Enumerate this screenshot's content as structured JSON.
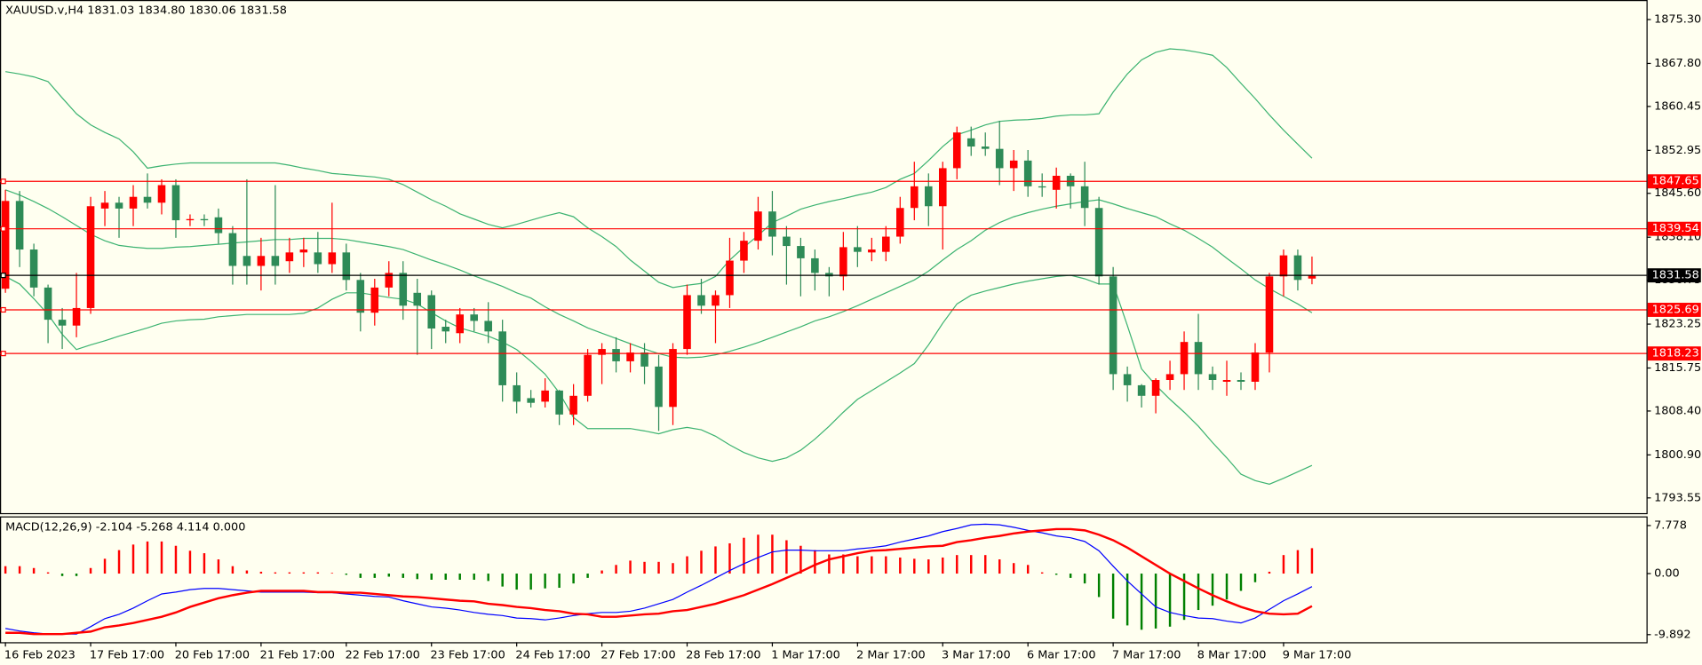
{
  "chart_data": [
    {
      "type": "candlestick",
      "title": "XAUUSD.v,H4  1831.03 1834.80 1830.06 1831.58",
      "categories": [
        "16 Feb 2023",
        null,
        null,
        null,
        null,
        null,
        "17 Feb 17:00",
        null,
        null,
        null,
        null,
        null,
        "20 Feb 17:00",
        null,
        null,
        null,
        null,
        null,
        "21 Feb 17:00",
        null,
        null,
        null,
        null,
        null,
        "22 Feb 17:00",
        null,
        null,
        null,
        null,
        null,
        "23 Feb 17:00",
        null,
        null,
        null,
        null,
        null,
        "24 Feb 17:00",
        null,
        null,
        null,
        null,
        null,
        "27 Feb 17:00",
        null,
        null,
        null,
        null,
        null,
        "28 Feb 17:00",
        null,
        null,
        null,
        null,
        null,
        "1 Mar 17:00",
        null,
        null,
        null,
        null,
        null,
        "2 Mar 17:00",
        null,
        null,
        null,
        null,
        null,
        "3 Mar 17:00",
        null,
        null,
        null,
        null,
        null,
        "6 Mar 17:00",
        null,
        null,
        null,
        null,
        null,
        "7 Mar 17:00",
        null,
        null,
        null,
        null,
        null,
        "8 Mar 17:00",
        null,
        null,
        null,
        null,
        null,
        "9 Mar 17:00",
        null,
        null
      ],
      "open": [
        1829.3,
        1844.3,
        1836,
        1829.5,
        1824,
        1823,
        1826,
        1843,
        1844,
        1843,
        1845,
        1844,
        1847,
        1841,
        1841.2,
        1841.5,
        1838.8,
        1834.9,
        1833.2,
        1834.9,
        1834,
        1835.5,
        1835.5,
        1833.5,
        1835.5,
        1830.8,
        1825.2,
        1829.5,
        1832,
        1828.6,
        1828.2,
        1822.8,
        1821.7,
        1824.9,
        1823.8,
        1822,
        1812.8,
        1810.6,
        1810,
        1811.9,
        1807.8,
        1811,
        1818,
        1819,
        1816.9,
        1818.4,
        1816,
        1809.1,
        1819,
        1828.2,
        1826.4,
        1828.2,
        1834.1,
        1837.5,
        1842.5,
        1838.2,
        1836.6,
        1834.5,
        1832,
        1831.4,
        1836.4,
        1835.5,
        1835.6,
        1838.2,
        1843.1,
        1846.8,
        1843.4,
        1849.9,
        1855,
        1853.6,
        1853.2,
        1849.9,
        1851.2,
        1846.8,
        1846.2,
        1848.6,
        1846.8,
        1843.1,
        1831.4,
        1814.7,
        1812.8,
        1811,
        1813.7,
        1814.7,
        1820.2,
        1814.7,
        1813.4,
        1813.7,
        1813.4,
        1818.4,
        1831.4,
        1835,
        1831.03
      ],
      "high": [
        1846.2,
        1846,
        1837,
        1830,
        1826,
        1832,
        1845,
        1846,
        1845,
        1847,
        1849,
        1848,
        1848,
        1842,
        1842,
        1843,
        1840,
        1848,
        1838,
        1847,
        1838,
        1838,
        1839,
        1844,
        1837,
        1832,
        1831,
        1834,
        1834,
        1831,
        1829,
        1824,
        1826,
        1826,
        1827,
        1824,
        1815,
        1812,
        1814,
        1812,
        1813,
        1819,
        1820,
        1821,
        1820,
        1820,
        1818,
        1820,
        1830,
        1831,
        1829,
        1838,
        1839,
        1845,
        1846,
        1840,
        1838,
        1836,
        1833,
        1839,
        1840,
        1838,
        1840,
        1845,
        1851,
        1849,
        1851,
        1857,
        1857,
        1856,
        1858,
        1853,
        1853,
        1849,
        1850,
        1849,
        1851,
        1845,
        1833,
        1816,
        1813,
        1814,
        1817,
        1822,
        1825,
        1816,
        1817,
        1815,
        1820,
        1832,
        1836,
        1836,
        1834.8
      ],
      "low": [
        1828.6,
        1833,
        1828,
        1820,
        1819,
        1821,
        1825,
        1840,
        1838,
        1840,
        1843,
        1842,
        1838,
        1840,
        1840,
        1837,
        1830,
        1830,
        1829,
        1830,
        1832,
        1833,
        1832,
        1832,
        1829,
        1822,
        1823,
        1828,
        1824,
        1818,
        1819,
        1820,
        1820,
        1822,
        1820,
        1810,
        1808,
        1809,
        1809,
        1806,
        1806,
        1810,
        1813,
        1815,
        1815,
        1813,
        1805,
        1806,
        1818,
        1825,
        1820,
        1826,
        1832,
        1836,
        1835,
        1830,
        1828,
        1829,
        1828,
        1829,
        1833,
        1834,
        1834,
        1837,
        1841,
        1840,
        1836,
        1848,
        1852,
        1852,
        1847,
        1846,
        1845,
        1845,
        1843,
        1843,
        1840,
        1830,
        1812,
        1810,
        1809,
        1808,
        1812,
        1812,
        1812,
        1812,
        1811,
        1812,
        1812,
        1815,
        1828,
        1829,
        1830.06
      ],
      "close": [
        1844.3,
        1836,
        1829.5,
        1824,
        1823,
        1826,
        1843.4,
        1844,
        1843,
        1845,
        1844,
        1847,
        1841,
        1841.2,
        1841,
        1838.8,
        1833.2,
        1833.2,
        1834.9,
        1833.2,
        1835.5,
        1836,
        1833.5,
        1835.5,
        1830.8,
        1825.2,
        1829.5,
        1832,
        1826.4,
        1826.4,
        1822.5,
        1822,
        1824.9,
        1823.8,
        1822,
        1812.8,
        1810,
        1809.8,
        1811.9,
        1807.8,
        1811,
        1818,
        1819,
        1816.9,
        1818.4,
        1816,
        1809.1,
        1819,
        1828.2,
        1826.4,
        1828.2,
        1834.1,
        1837.5,
        1842.5,
        1838.2,
        1836.6,
        1834.5,
        1832,
        1831.4,
        1836.4,
        1835.6,
        1836,
        1838.2,
        1843.1,
        1846.8,
        1843.4,
        1849.9,
        1856,
        1853.6,
        1853.2,
        1849.9,
        1851.2,
        1846.8,
        1846.6,
        1848.6,
        1846.8,
        1843.1,
        1831.4,
        1814.7,
        1812.8,
        1811,
        1813.7,
        1814.7,
        1820.2,
        1814.7,
        1813.7,
        1813.7,
        1813.4,
        1818.4,
        1831.4,
        1835,
        1830.8,
        1831.58
      ],
      "up_color": "#ff0000",
      "down_color": "#2e8b57",
      "bands": {
        "color": "#3cb371",
        "upper": [
          1866.4,
          1866.0,
          1865.5,
          1864.7,
          1861.9,
          1859.2,
          1857.3,
          1856.0,
          1854.9,
          1852.7,
          1849.9,
          1850.3,
          1850.6,
          1850.8,
          1850.8,
          1850.8,
          1850.8,
          1850.8,
          1850.8,
          1850.8,
          1850.4,
          1849.9,
          1849.5,
          1849.0,
          1848.8,
          1848.6,
          1848.4,
          1848.0,
          1847.1,
          1845.8,
          1844.5,
          1843.4,
          1842.1,
          1841.2,
          1840.3,
          1839.7,
          1840.3,
          1841.0,
          1841.7,
          1842.3,
          1841.6,
          1839.7,
          1838.2,
          1836.5,
          1834.2,
          1832.3,
          1830.4,
          1829.5,
          1829.9,
          1830.2,
          1831.4,
          1834.2,
          1836.4,
          1838.4,
          1840.6,
          1841.7,
          1842.9,
          1843.6,
          1844.2,
          1844.7,
          1845.3,
          1845.8,
          1846.6,
          1848.0,
          1849.0,
          1851.2,
          1853.6,
          1855.6,
          1856.4,
          1857.3,
          1857.9,
          1858.1,
          1858.2,
          1858.4,
          1858.8,
          1859.0,
          1859.0,
          1859.2,
          1862.9,
          1866.0,
          1868.4,
          1869.7,
          1870.3,
          1870.1,
          1869.7,
          1869.2,
          1867.1,
          1864.4,
          1861.8,
          1859.0,
          1856.4,
          1854.0,
          1851.6
        ],
        "middle": [
          1846.2,
          1845.3,
          1844.2,
          1843.0,
          1841.6,
          1840.1,
          1838.6,
          1837.5,
          1836.7,
          1836.4,
          1836.2,
          1836.2,
          1836.4,
          1836.5,
          1836.7,
          1836.9,
          1837.1,
          1837.3,
          1837.5,
          1837.7,
          1837.7,
          1837.9,
          1837.9,
          1837.9,
          1837.7,
          1837.3,
          1836.9,
          1836.5,
          1836.0,
          1835.1,
          1834.2,
          1833.4,
          1832.5,
          1831.5,
          1830.6,
          1829.7,
          1828.6,
          1827.7,
          1826.2,
          1824.9,
          1823.8,
          1822.6,
          1821.7,
          1820.8,
          1819.9,
          1819.0,
          1818.2,
          1817.6,
          1817.5,
          1817.6,
          1818.0,
          1818.6,
          1819.3,
          1820.1,
          1821.0,
          1821.9,
          1822.8,
          1823.8,
          1824.5,
          1825.4,
          1826.4,
          1827.5,
          1828.6,
          1829.7,
          1830.8,
          1832.3,
          1834.2,
          1836.0,
          1837.5,
          1839.3,
          1840.6,
          1841.6,
          1842.3,
          1842.9,
          1843.4,
          1843.8,
          1844.2,
          1844.5,
          1843.8,
          1843.0,
          1842.3,
          1841.6,
          1840.4,
          1839.3,
          1837.9,
          1836.4,
          1834.5,
          1832.7,
          1830.8,
          1829.3,
          1828.0,
          1826.7,
          1825.2
        ],
        "lower": [
          1831.4,
          1830.1,
          1827.6,
          1824.9,
          1821.5,
          1818.9,
          1819.7,
          1820.4,
          1821.2,
          1821.9,
          1822.6,
          1823.4,
          1823.8,
          1824.0,
          1824.1,
          1824.5,
          1824.7,
          1824.9,
          1824.9,
          1824.9,
          1824.9,
          1825.1,
          1826.0,
          1827.5,
          1828.6,
          1828.6,
          1828.2,
          1827.8,
          1827.5,
          1826.7,
          1825.2,
          1823.8,
          1822.6,
          1821.9,
          1821.2,
          1820.2,
          1818.9,
          1816.9,
          1814.7,
          1811.5,
          1807.3,
          1805.4,
          1805.4,
          1805.4,
          1805.4,
          1805.0,
          1804.5,
          1805.2,
          1805.6,
          1805.2,
          1804.1,
          1802.6,
          1801.3,
          1800.4,
          1799.8,
          1800.4,
          1801.7,
          1803.6,
          1805.8,
          1808.2,
          1810.4,
          1811.9,
          1813.4,
          1814.9,
          1816.5,
          1819.7,
          1823.4,
          1826.7,
          1828.2,
          1828.9,
          1829.5,
          1830.1,
          1830.6,
          1831.0,
          1831.4,
          1831.6,
          1831.0,
          1830.1,
          1830.1,
          1823.0,
          1815.6,
          1812.8,
          1810.4,
          1808.2,
          1805.8,
          1803.0,
          1800.4,
          1797.6,
          1796.5,
          1795.9,
          1796.9,
          1798.0,
          1799.1
        ]
      },
      "levels": [
        {
          "value": 1847.65,
          "color": "#ff0000"
        },
        {
          "value": 1839.54,
          "color": "#ff0000"
        },
        {
          "value": 1831.58,
          "color": "#000000"
        },
        {
          "value": 1825.69,
          "color": "#ff0000"
        },
        {
          "value": 1818.23,
          "color": "#ff0000"
        }
      ],
      "ylim": [
        1790.95,
        1878.64
      ],
      "yticks": [
        {
          "value": 1875.3,
          "label": "1875.30"
        },
        {
          "value": 1867.8,
          "label": "1867.80"
        },
        1860.45,
        1852.95,
        {
          "value": 1845.6,
          "label": "1845.60"
        },
        {
          "value": 1838.1,
          "label": "1838.10"
        },
        1830.75,
        1823.25,
        1815.75,
        {
          "value": 1808.4,
          "label": "1808.40"
        },
        {
          "value": 1800.9,
          "label": "1800.90"
        },
        1793.55
      ]
    },
    {
      "type": "macd",
      "title": "MACD(12,26,9) -2.104 -5.268 4.114 0.000",
      "histogram": [
        1.2,
        1.2,
        0.9,
        0.2,
        -0.4,
        -0.4,
        0.9,
        2.4,
        3.8,
        4.7,
        5.2,
        5.2,
        4.5,
        3.7,
        3.3,
        2.3,
        1.2,
        0.5,
        0.3,
        0.2,
        0.2,
        0.2,
        0.2,
        0.1,
        -0.2,
        -0.7,
        -0.7,
        -0.5,
        -0.7,
        -0.9,
        -1.0,
        -1.0,
        -1.0,
        -1.0,
        -1.2,
        -2.1,
        -2.6,
        -2.6,
        -2.4,
        -2.3,
        -1.6,
        -0.7,
        0.5,
        1.4,
        2.1,
        1.9,
        1.9,
        1.7,
        2.8,
        3.7,
        4.4,
        4.9,
        5.8,
        6.3,
        6.3,
        5.4,
        4.5,
        3.8,
        3.1,
        3.1,
        2.8,
        2.8,
        2.8,
        2.6,
        2.4,
        2.3,
        2.6,
        3.0,
        3.0,
        3.0,
        2.3,
        1.7,
        1.4,
        0.2,
        -0.2,
        -0.7,
        -1.6,
        -3.8,
        -7.3,
        -8.4,
        -9.1,
        -8.9,
        -8.6,
        -7.5,
        -5.9,
        -5.2,
        -4.2,
        -2.8,
        -1.4,
        0.3,
        3.0,
        3.8,
        4.114
      ],
      "up_color": "#ff0000",
      "down_color": "#008000",
      "macd": {
        "color": "#0000ff",
        "values": [
          -8.9,
          -9.3,
          -9.6,
          -9.8,
          -9.8,
          -9.8,
          -8.6,
          -7.3,
          -6.6,
          -5.6,
          -4.4,
          -3.3,
          -3.0,
          -2.6,
          -2.4,
          -2.4,
          -2.6,
          -2.8,
          -3.0,
          -3.0,
          -3.0,
          -3.0,
          -3.1,
          -3.1,
          -3.3,
          -3.5,
          -3.7,
          -3.8,
          -4.4,
          -4.9,
          -5.4,
          -5.6,
          -5.9,
          -6.3,
          -6.6,
          -6.8,
          -7.2,
          -7.3,
          -7.5,
          -7.2,
          -6.8,
          -6.5,
          -6.3,
          -6.3,
          -6.1,
          -5.6,
          -4.9,
          -4.2,
          -3.0,
          -1.9,
          -0.7,
          0.5,
          1.6,
          2.6,
          3.5,
          3.8,
          3.8,
          3.7,
          3.7,
          3.7,
          4.0,
          4.2,
          4.5,
          5.1,
          5.6,
          6.1,
          6.8,
          7.3,
          7.9,
          8.0,
          7.9,
          7.5,
          7.0,
          6.6,
          6.1,
          5.8,
          5.2,
          3.7,
          1.2,
          -1.2,
          -3.3,
          -5.4,
          -6.3,
          -6.8,
          -7.2,
          -7.3,
          -7.7,
          -8.0,
          -7.2,
          -5.8,
          -4.4,
          -3.3,
          -2.104
        ]
      },
      "signal": {
        "color": "#ff0000",
        "values": [
          -9.6,
          -9.6,
          -9.8,
          -9.8,
          -9.8,
          -9.6,
          -9.4,
          -8.7,
          -8.4,
          -8.0,
          -7.5,
          -7.0,
          -6.3,
          -5.4,
          -4.7,
          -4.0,
          -3.5,
          -3.1,
          -2.8,
          -2.8,
          -2.8,
          -2.8,
          -3.0,
          -3.0,
          -3.1,
          -3.1,
          -3.3,
          -3.5,
          -3.7,
          -3.8,
          -4.0,
          -4.2,
          -4.4,
          -4.5,
          -4.9,
          -5.1,
          -5.4,
          -5.6,
          -5.9,
          -6.1,
          -6.5,
          -6.6,
          -7.0,
          -7.0,
          -6.8,
          -6.6,
          -6.5,
          -6.1,
          -5.9,
          -5.4,
          -4.9,
          -4.2,
          -3.5,
          -2.6,
          -1.7,
          -0.7,
          0.3,
          1.4,
          2.3,
          2.8,
          3.3,
          3.7,
          3.8,
          4.0,
          4.2,
          4.4,
          4.5,
          5.1,
          5.4,
          5.8,
          6.1,
          6.5,
          6.8,
          7.0,
          7.2,
          7.2,
          7.0,
          6.3,
          5.4,
          4.2,
          2.8,
          1.4,
          0.0,
          -1.2,
          -2.4,
          -3.5,
          -4.5,
          -5.4,
          -6.1,
          -6.5,
          -6.6,
          -6.5,
          -5.268
        ]
      },
      "ylim": [
        -11.12,
        9.265
      ],
      "yticks": [
        7.778,
        {
          "value": 0,
          "label": "0.00"
        },
        -9.892
      ]
    }
  ]
}
